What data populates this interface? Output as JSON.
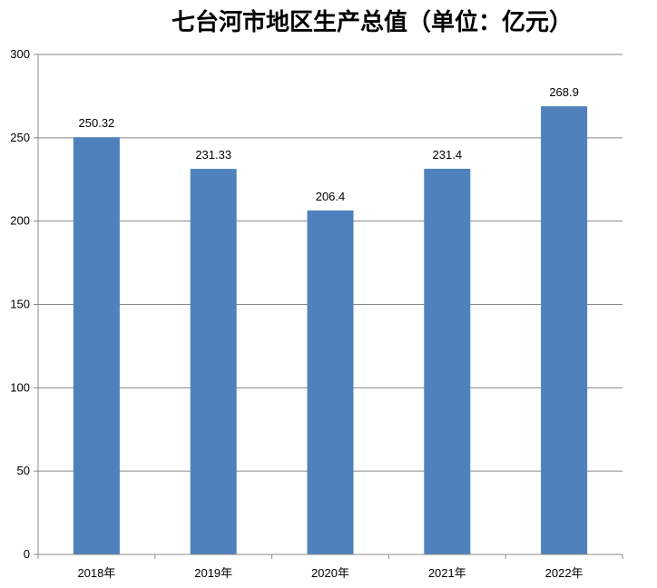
{
  "chart_data": {
    "type": "bar",
    "title": "七台河市地区生产总值（单位：亿元）",
    "categories": [
      "2018年",
      "2019年",
      "2020年",
      "2021年",
      "2022年"
    ],
    "values": [
      250.32,
      231.33,
      206.4,
      231.4,
      268.9
    ],
    "data_labels": [
      "250.32",
      "231.33",
      "206.4",
      "231.4",
      "268.9"
    ],
    "ylim": [
      0,
      300
    ],
    "yticks": [
      0,
      50,
      100,
      150,
      200,
      250,
      300
    ],
    "grid": true,
    "legend": "none",
    "bar_color": "#4f81bd",
    "grid_color": "#888888"
  }
}
